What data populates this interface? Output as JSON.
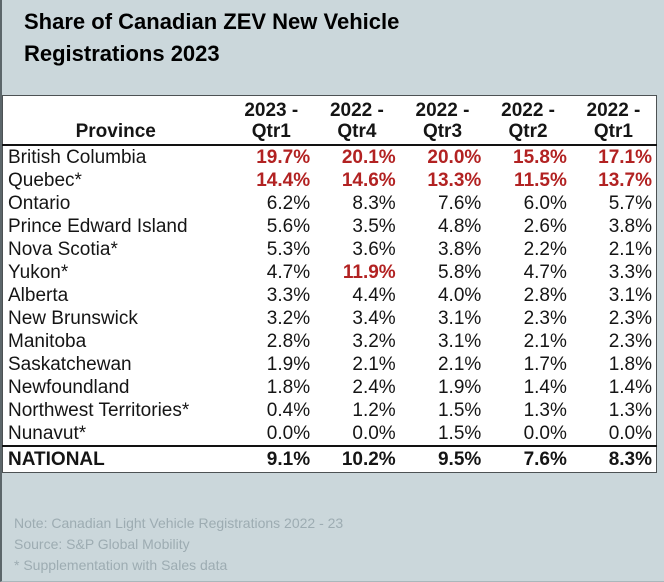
{
  "title": {
    "line1": "Share of Canadian ZEV New Vehicle",
    "line2": "Registrations 2023"
  },
  "table": {
    "province_header": "Province",
    "quarter_headers": [
      {
        "year": "2023 -",
        "qtr": "Qtr1"
      },
      {
        "year": "2022 -",
        "qtr": "Qtr4"
      },
      {
        "year": "2022 -",
        "qtr": "Qtr3"
      },
      {
        "year": "2022 -",
        "qtr": "Qtr2"
      },
      {
        "year": "2022 -",
        "qtr": "Qtr1"
      }
    ],
    "rows": [
      {
        "province": "British Columbia",
        "values": [
          "19.7%",
          "20.1%",
          "20.0%",
          "15.8%",
          "17.1%"
        ],
        "red": [
          0,
          1,
          2,
          3,
          4
        ]
      },
      {
        "province": "Quebec*",
        "values": [
          "14.4%",
          "14.6%",
          "13.3%",
          "11.5%",
          "13.7%"
        ],
        "red": [
          0,
          1,
          2,
          3,
          4
        ]
      },
      {
        "province": "Ontario",
        "values": [
          "6.2%",
          "8.3%",
          "7.6%",
          "6.0%",
          "5.7%"
        ],
        "red": []
      },
      {
        "province": "Prince Edward Island",
        "values": [
          "5.6%",
          "3.5%",
          "4.8%",
          "2.6%",
          "3.8%"
        ],
        "red": []
      },
      {
        "province": "Nova Scotia*",
        "values": [
          "5.3%",
          "3.6%",
          "3.8%",
          "2.2%",
          "2.1%"
        ],
        "red": []
      },
      {
        "province": "Yukon*",
        "values": [
          "4.7%",
          "11.9%",
          "5.8%",
          "4.7%",
          "3.3%"
        ],
        "red": [
          1
        ]
      },
      {
        "province": "Alberta",
        "values": [
          "3.3%",
          "4.4%",
          "4.0%",
          "2.8%",
          "3.1%"
        ],
        "red": []
      },
      {
        "province": "New Brunswick",
        "values": [
          "3.2%",
          "3.4%",
          "3.1%",
          "2.3%",
          "2.3%"
        ],
        "red": []
      },
      {
        "province": "Manitoba",
        "values": [
          "2.8%",
          "3.2%",
          "3.1%",
          "2.1%",
          "2.3%"
        ],
        "red": []
      },
      {
        "province": "Saskatchewan",
        "values": [
          "1.9%",
          "2.1%",
          "2.1%",
          "1.7%",
          "1.8%"
        ],
        "red": []
      },
      {
        "province": "Newfoundland",
        "values": [
          "1.8%",
          "2.4%",
          "1.9%",
          "1.4%",
          "1.4%"
        ],
        "red": []
      },
      {
        "province": "Northwest Territories*",
        "values": [
          "0.4%",
          "1.2%",
          "1.5%",
          "1.3%",
          "1.3%"
        ],
        "red": []
      },
      {
        "province": "Nunavut*",
        "values": [
          "0.0%",
          "0.0%",
          "1.5%",
          "0.0%",
          "0.0%"
        ],
        "red": []
      }
    ],
    "national_row": {
      "label": "NATIONAL",
      "values": [
        "9.1%",
        "10.2%",
        "9.5%",
        "7.6%",
        "8.3%"
      ]
    }
  },
  "notes": [
    "Note: Canadian Light Vehicle Registrations 2022 - 23",
    "Source: S&P Global Mobility",
    "* Supplementation with Sales data"
  ],
  "colors": {
    "background": "#cbd7db",
    "highlight_red": "#b22222",
    "note_gray": "#9dacb2",
    "table_border": "#4d5254"
  },
  "chart_data": {
    "type": "table",
    "title": "Share of Canadian ZEV New Vehicle Registrations 2023",
    "columns": [
      "Province",
      "2023 - Qtr1",
      "2022 - Qtr4",
      "2022 - Qtr3",
      "2022 - Qtr2",
      "2022 - Qtr1"
    ],
    "unit": "%",
    "rows": [
      [
        "British Columbia",
        19.7,
        20.1,
        20.0,
        15.8,
        17.1
      ],
      [
        "Quebec*",
        14.4,
        14.6,
        13.3,
        11.5,
        13.7
      ],
      [
        "Ontario",
        6.2,
        8.3,
        7.6,
        6.0,
        5.7
      ],
      [
        "Prince Edward Island",
        5.6,
        3.5,
        4.8,
        2.6,
        3.8
      ],
      [
        "Nova Scotia*",
        5.3,
        3.6,
        3.8,
        2.2,
        2.1
      ],
      [
        "Yukon*",
        4.7,
        11.9,
        5.8,
        4.7,
        3.3
      ],
      [
        "Alberta",
        3.3,
        4.4,
        4.0,
        2.8,
        3.1
      ],
      [
        "New Brunswick",
        3.2,
        3.4,
        3.1,
        2.3,
        2.3
      ],
      [
        "Manitoba",
        2.8,
        3.2,
        3.1,
        2.1,
        2.3
      ],
      [
        "Saskatchewan",
        1.9,
        2.1,
        2.1,
        1.7,
        1.8
      ],
      [
        "Newfoundland",
        1.8,
        2.4,
        1.9,
        1.4,
        1.4
      ],
      [
        "Northwest Territories*",
        0.4,
        1.2,
        1.5,
        1.3,
        1.3
      ],
      [
        "Nunavut*",
        0.0,
        0.0,
        1.5,
        0.0,
        0.0
      ],
      [
        "NATIONAL",
        9.1,
        10.2,
        9.5,
        7.6,
        8.3
      ]
    ],
    "red_highlighted_cells": [
      "British Columbia: all five quarters",
      "Quebec*: all five quarters",
      "Yukon*: 2022 - Qtr4 (11.9%)"
    ],
    "notes": [
      "Note: Canadian Light Vehicle Registrations 2022 - 23",
      "Source: S&P Global Mobility",
      "* Supplementation with Sales data"
    ]
  }
}
